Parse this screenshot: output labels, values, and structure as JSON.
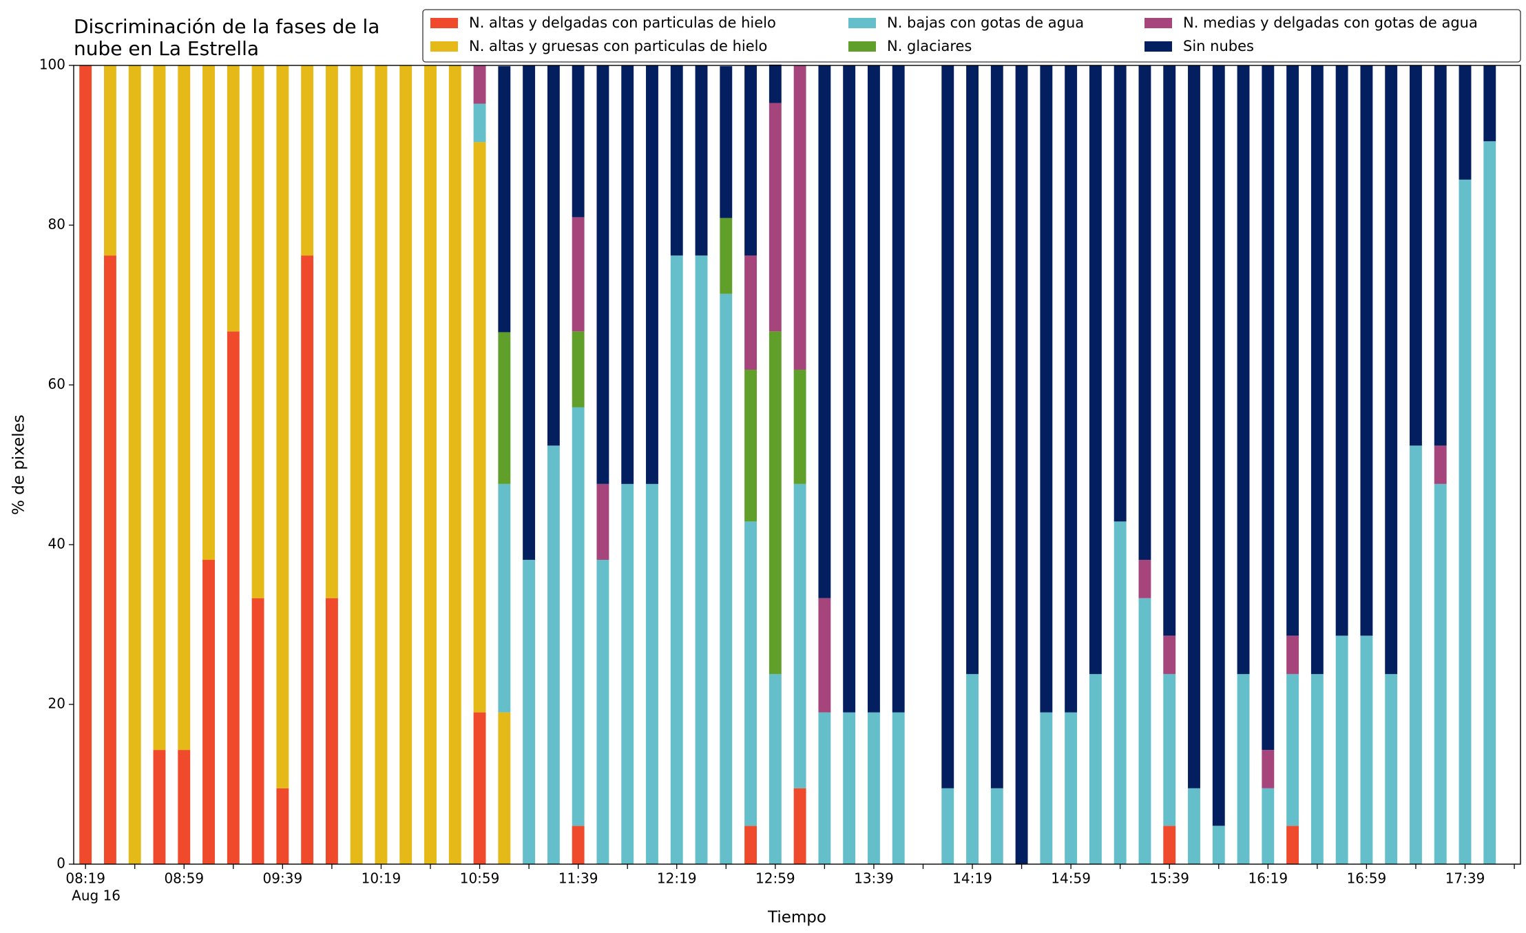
{
  "chart_data": {
    "type": "stacked_bar",
    "title": "Discriminación de la fases de la\nnube en La Estrella",
    "xlabel": "Tiempo",
    "ylabel": "% de pixeles",
    "x_sublabel": "Aug 16",
    "categories": [
      "08:19",
      null,
      null,
      null,
      "08:59",
      null,
      null,
      null,
      "09:39",
      null,
      null,
      null,
      "10:19",
      null,
      null,
      null,
      "10:59",
      null,
      null,
      null,
      "11:39",
      null,
      null,
      null,
      "12:19",
      null,
      null,
      null,
      "12:59",
      null,
      null,
      null,
      "13:39",
      null,
      null,
      null,
      "14:19",
      null,
      null,
      null,
      "14:59",
      null,
      null,
      null,
      "15:39",
      null,
      null,
      null,
      "16:19",
      null,
      null,
      null,
      "16:59",
      null,
      null,
      null,
      "17:39",
      null
    ],
    "ylim": [
      0,
      100
    ],
    "yticks": [
      0,
      20,
      40,
      60,
      80,
      100
    ],
    "series": [
      {
        "name": "N. altas y delgadas con particulas de hielo",
        "color": "#ef4a2b",
        "values": [
          100,
          76.2,
          0,
          14.3,
          14.3,
          38.1,
          66.7,
          33.3,
          9.5,
          76.2,
          33.3,
          0,
          0,
          0,
          0,
          0,
          19.0,
          0,
          0,
          0,
          4.8,
          0,
          0,
          0,
          0,
          0,
          0,
          4.8,
          0,
          9.5,
          0,
          0,
          0,
          0,
          null,
          0,
          0,
          0,
          0,
          0,
          0,
          0,
          0,
          0,
          4.8,
          0,
          0,
          0,
          0,
          4.8,
          0,
          0,
          0,
          0,
          0,
          0,
          0,
          0
        ]
      },
      {
        "name": "N. altas y gruesas con particulas de hielo",
        "color": "#e5b917",
        "values": [
          0,
          23.8,
          100,
          85.7,
          85.7,
          61.9,
          33.3,
          66.7,
          90.5,
          23.8,
          66.7,
          100,
          100,
          100,
          100,
          100,
          71.4,
          19.0,
          0,
          0,
          0,
          0,
          0,
          0,
          0,
          0,
          0,
          0,
          0,
          0,
          0,
          0,
          0,
          0,
          null,
          0,
          0,
          0,
          0,
          0,
          0,
          0,
          0,
          0,
          0,
          0,
          0,
          0,
          0,
          0,
          0,
          0,
          0,
          0,
          0,
          0,
          0,
          0
        ]
      },
      {
        "name": "N. bajas con gotas de agua",
        "color": "#65bfca",
        "values": [
          0,
          0,
          0,
          0,
          0,
          0,
          0,
          0,
          0,
          0,
          0,
          0,
          0,
          0,
          0,
          0,
          4.8,
          28.6,
          38.1,
          52.4,
          52.4,
          38.1,
          47.6,
          47.6,
          76.2,
          76.2,
          71.4,
          38.1,
          23.8,
          38.1,
          19.0,
          19.0,
          19.0,
          19.0,
          null,
          9.5,
          23.8,
          9.5,
          0,
          19.0,
          19.0,
          23.8,
          42.9,
          33.3,
          19.0,
          9.5,
          4.8,
          23.8,
          9.5,
          19.0,
          23.8,
          28.6,
          28.6,
          23.8,
          52.4,
          47.6,
          85.7,
          90.5
        ]
      },
      {
        "name": "N. glaciares",
        "color": "#5f9f2a",
        "values": [
          0,
          0,
          0,
          0,
          0,
          0,
          0,
          0,
          0,
          0,
          0,
          0,
          0,
          0,
          0,
          0,
          0,
          19.0,
          0,
          0,
          9.5,
          0,
          0,
          0,
          0,
          0,
          9.5,
          19.0,
          42.9,
          14.3,
          0,
          0,
          0,
          0,
          null,
          0,
          0,
          0,
          0,
          0,
          0,
          0,
          0,
          0,
          0,
          0,
          0,
          0,
          0,
          0,
          0,
          0,
          0,
          0,
          0,
          0,
          0,
          0
        ]
      },
      {
        "name": "N. medias y delgadas con gotas de agua",
        "color": "#a6457b",
        "values": [
          0,
          0,
          0,
          0,
          0,
          0,
          0,
          0,
          0,
          0,
          0,
          0,
          0,
          0,
          0,
          0,
          4.8,
          0,
          0,
          0,
          14.3,
          9.5,
          0,
          0,
          0,
          0,
          0,
          14.3,
          28.6,
          38.1,
          14.3,
          0,
          0,
          0,
          null,
          0,
          0,
          0,
          0,
          0,
          0,
          0,
          0,
          4.8,
          4.8,
          0,
          0,
          0,
          4.8,
          4.8,
          0,
          0,
          0,
          0,
          0,
          4.8,
          0,
          0
        ]
      },
      {
        "name": "Sin nubes",
        "color": "#031f5f",
        "values": [
          0,
          0,
          0,
          0,
          0,
          0,
          0,
          0,
          0,
          0,
          0,
          0,
          0,
          0,
          0,
          0,
          0,
          33.3,
          61.9,
          47.6,
          19.0,
          52.4,
          52.4,
          52.4,
          23.8,
          23.8,
          19.0,
          23.8,
          4.8,
          0,
          66.7,
          81.0,
          81.0,
          81.0,
          null,
          90.5,
          76.2,
          90.5,
          100,
          81.0,
          81.0,
          76.2,
          57.1,
          61.9,
          71.4,
          90.5,
          95.2,
          76.2,
          85.7,
          71.4,
          76.2,
          71.4,
          71.4,
          76.2,
          47.6,
          47.6,
          14.3,
          9.5
        ]
      }
    ]
  }
}
